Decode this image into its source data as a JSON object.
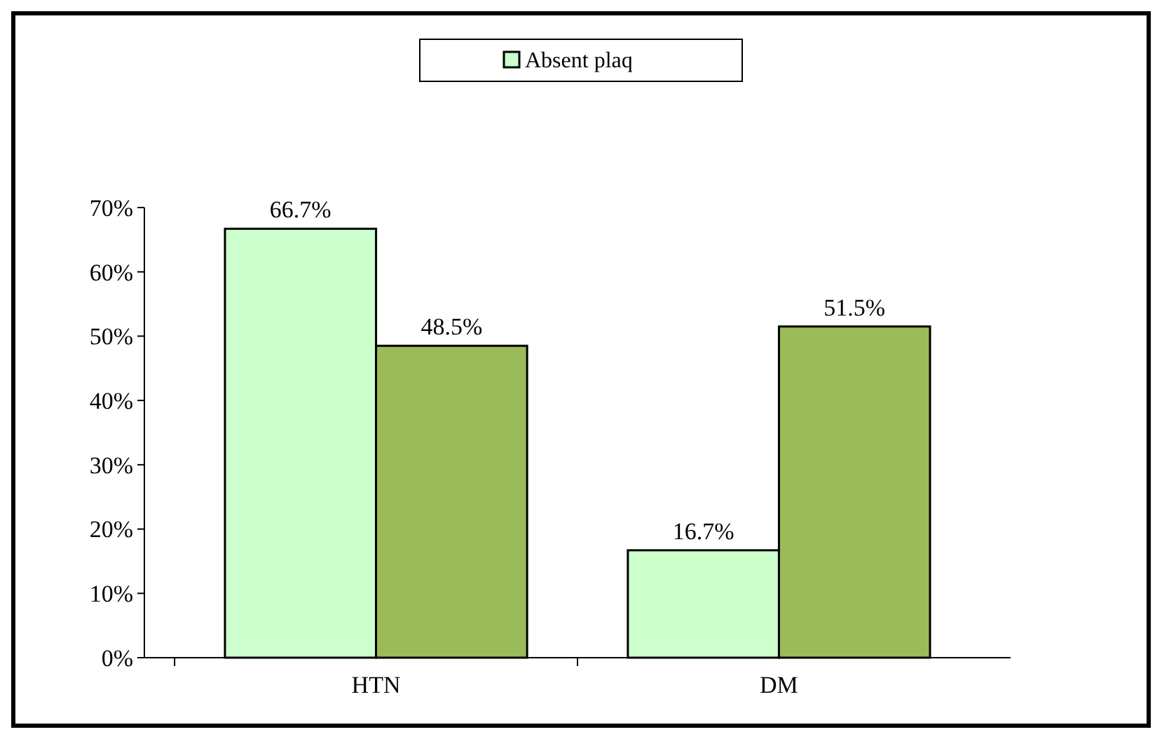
{
  "chart_data": {
    "type": "bar",
    "categories": [
      "HTN",
      "DM"
    ],
    "series": [
      {
        "name": "Absent plaq",
        "color": "#ccffcc",
        "values": [
          66.7,
          16.7
        ],
        "value_labels": [
          "66.7%",
          "16.7%"
        ]
      },
      {
        "color": "#9bbb59",
        "values": [
          48.5,
          51.5
        ],
        "value_labels": [
          "48.5%",
          "51.5%"
        ]
      }
    ],
    "ylim": [
      0,
      70
    ],
    "yticks": [
      {
        "value": 0,
        "label": "0%"
      },
      {
        "value": 10,
        "label": "10%"
      },
      {
        "value": 20,
        "label": "20%"
      },
      {
        "value": 30,
        "label": "30%"
      },
      {
        "value": 40,
        "label": "40%"
      },
      {
        "value": 50,
        "label": "50%"
      },
      {
        "value": 60,
        "label": "60%"
      },
      {
        "value": 70,
        "label": "70%"
      }
    ],
    "legend": "top",
    "grid": false
  }
}
